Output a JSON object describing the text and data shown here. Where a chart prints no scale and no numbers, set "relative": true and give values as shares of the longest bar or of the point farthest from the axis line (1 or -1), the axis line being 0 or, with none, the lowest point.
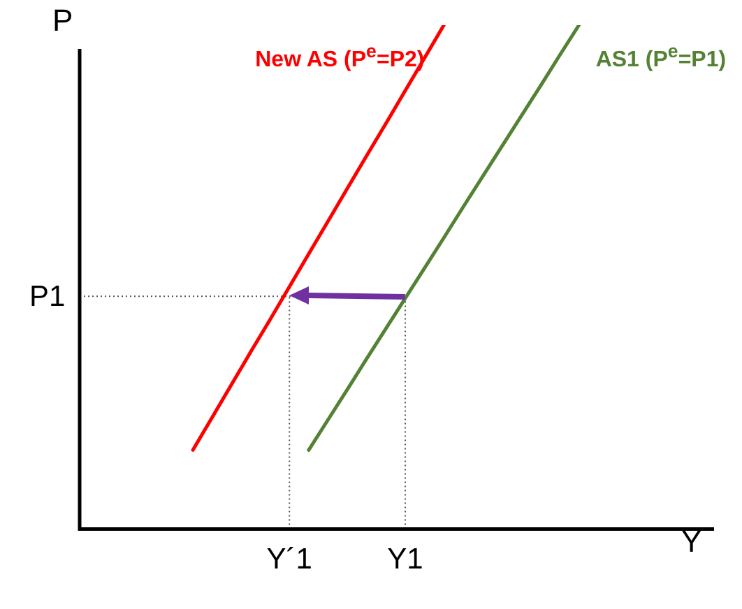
{
  "chart_data": {
    "type": "line",
    "relative": true,
    "xlabel": "Y",
    "ylabel": "P",
    "legend": false,
    "grid": false,
    "marker": "none",
    "categories": [
      null,
      null,
      null,
      null,
      null,
      null,
      null,
      null,
      null,
      null,
      "Y´1",
      null,
      null,
      null,
      null,
      null,
      "Y1",
      null,
      null,
      null,
      null,
      null,
      null,
      null,
      null,
      null,
      null,
      null,
      null,
      null,
      null,
      null,
      null
    ],
    "series": [
      {
        "name": "New AS (P$^{e}$=P2)",
        "color": "#ff0000",
        "values": [
          null,
          null,
          null,
          null,
          null,
          0.157,
          0.222,
          0.287,
          0.352,
          0.416,
          0.481,
          0.546,
          0.611,
          0.676,
          0.741,
          0.805,
          0.87,
          0.935,
          1,
          null,
          null,
          null,
          null,
          null,
          null,
          null,
          null,
          null,
          null,
          null,
          null,
          null,
          null
        ]
      },
      {
        "name": "AS1 (P$^{e}$=P1)",
        "color": "#548235",
        "values": [
          null,
          null,
          null,
          null,
          null,
          null,
          null,
          null,
          null,
          null,
          null,
          0.157,
          0.217,
          0.277,
          0.338,
          0.398,
          0.458,
          0.518,
          0.578,
          0.639,
          0.699,
          0.759,
          0.819,
          0.879,
          0.94,
          1,
          null,
          null,
          null,
          null,
          null,
          null,
          null
        ]
      }
    ],
    "ref_lines": [
      {
        "axis": "y",
        "value": 0.462,
        "label": "P1",
        "line_style": "dotted"
      },
      {
        "axis": "x",
        "value": "Y´1",
        "line_style": "dotted"
      },
      {
        "axis": "x",
        "value": "Y1",
        "line_style": "dotted"
      }
    ]
  }
}
